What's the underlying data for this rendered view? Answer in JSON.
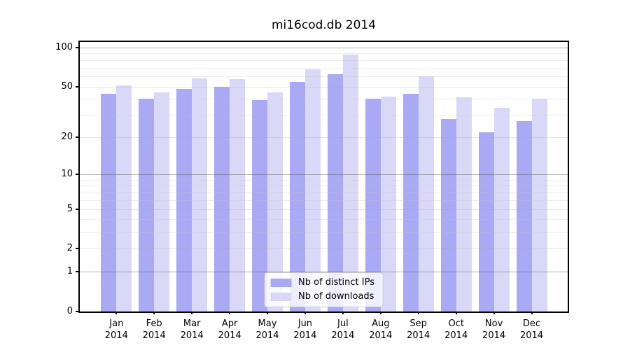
{
  "chart_data": {
    "type": "bar",
    "title": "mi16cod.db 2014",
    "categories": [
      "Jan",
      "Feb",
      "Mar",
      "Apr",
      "May",
      "Jun",
      "Jul",
      "Aug",
      "Sep",
      "Oct",
      "Nov",
      "Dec"
    ],
    "x_year": "2014",
    "series": [
      {
        "name": "Nb of distinct IPs",
        "color": "#a9a9f4",
        "values": [
          44,
          40,
          48,
          50,
          39,
          54,
          62,
          40,
          44,
          28,
          22,
          27
        ]
      },
      {
        "name": "Nb of downloads",
        "color": "#d9d9f7",
        "values": [
          51,
          45,
          58,
          57,
          45,
          68,
          88,
          42,
          60,
          41,
          34,
          40
        ]
      }
    ],
    "xlabel": "",
    "ylabel": "",
    "yscale": "log1p",
    "ylim": [
      0,
      110
    ],
    "y_major_ticks": [
      0,
      1,
      2,
      5,
      10,
      20,
      50,
      100
    ],
    "y_decade_ticks": [
      1,
      10,
      100
    ],
    "y_minor_gridlines": [
      3,
      4,
      6,
      7,
      8,
      9,
      30,
      40,
      60,
      70,
      80,
      90
    ],
    "grid": true,
    "legend_position": "lower center"
  }
}
